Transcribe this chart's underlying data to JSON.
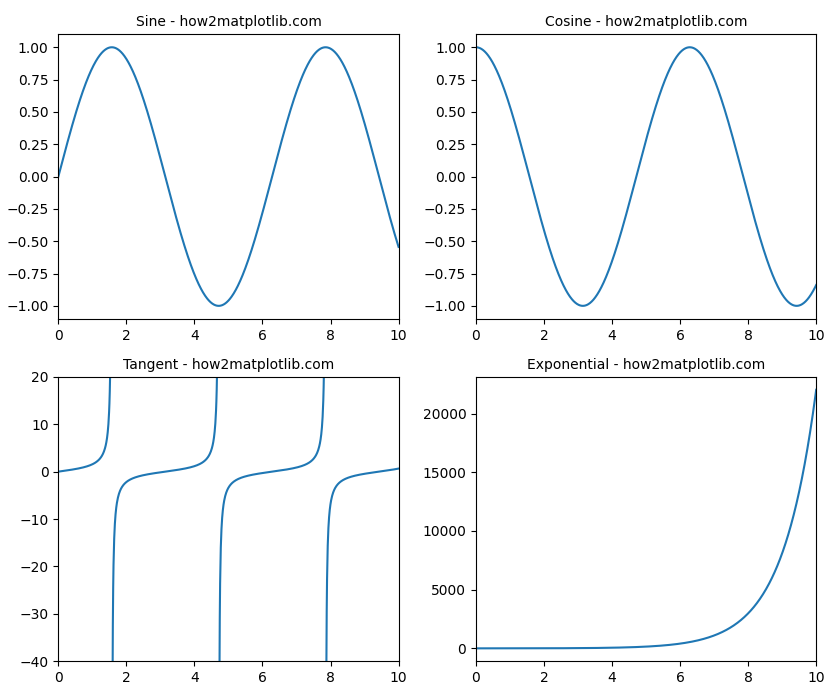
{
  "titles": [
    "Sine - how2matplotlib.com",
    "Cosine - how2matplotlib.com",
    "Tangent - how2matplotlib.com",
    "Exponential - how2matplotlib.com"
  ],
  "x_min": 0,
  "x_max": 10,
  "line_color": "#1f77b4",
  "line_width": 1.5,
  "tan_ylim": [
    -40,
    20
  ],
  "background_color": "#ffffff",
  "title_fontsize": 10,
  "num_points": 1000,
  "figsize": [
    8.4,
    7.0
  ],
  "dpi": 100
}
